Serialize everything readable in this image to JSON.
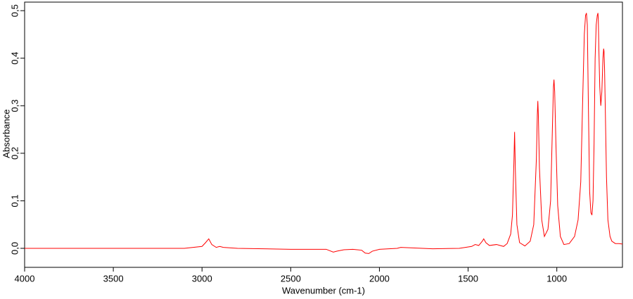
{
  "chart_data": {
    "type": "line",
    "x_label": "Wavenumber (cm-1)",
    "y_label": "Absorbance",
    "color": "#ff0000",
    "x": [
      4000,
      3500,
      3100,
      3000,
      2980,
      2962,
      2945,
      2920,
      2900,
      2880,
      2800,
      2500,
      2300,
      2260,
      2240,
      2200,
      2150,
      2100,
      2080,
      2060,
      2040,
      2000,
      1900,
      1880,
      1700,
      1550,
      1480,
      1460,
      1440,
      1420,
      1412,
      1400,
      1380,
      1340,
      1300,
      1280,
      1260,
      1250,
      1242,
      1238,
      1234,
      1225,
      1210,
      1180,
      1150,
      1130,
      1115,
      1110,
      1107,
      1104,
      1098,
      1085,
      1070,
      1050,
      1035,
      1025,
      1019,
      1016,
      1012,
      1005,
      995,
      980,
      960,
      930,
      900,
      880,
      865,
      855,
      845,
      838,
      833,
      828,
      822,
      815,
      808,
      802,
      796,
      790,
      784,
      778,
      772,
      768,
      766,
      763,
      758,
      752,
      746,
      740,
      736,
      734,
      731,
      727,
      720,
      712,
      700,
      690,
      670,
      650,
      630
    ],
    "values": [
      0.0,
      0.0,
      0.0,
      0.004,
      0.012,
      0.02,
      0.008,
      0.002,
      0.004,
      0.002,
      0.0,
      -0.002,
      -0.002,
      -0.008,
      -0.006,
      -0.003,
      -0.002,
      -0.004,
      -0.01,
      -0.011,
      -0.006,
      -0.002,
      0.0,
      0.002,
      -0.001,
      0.0,
      0.004,
      0.008,
      0.006,
      0.015,
      0.02,
      0.012,
      0.006,
      0.008,
      0.004,
      0.01,
      0.03,
      0.07,
      0.18,
      0.245,
      0.17,
      0.05,
      0.012,
      0.005,
      0.015,
      0.05,
      0.19,
      0.28,
      0.31,
      0.28,
      0.17,
      0.06,
      0.025,
      0.04,
      0.1,
      0.25,
      0.34,
      0.355,
      0.33,
      0.22,
      0.09,
      0.025,
      0.008,
      0.01,
      0.025,
      0.06,
      0.14,
      0.3,
      0.45,
      0.49,
      0.495,
      0.47,
      0.3,
      0.12,
      0.075,
      0.07,
      0.1,
      0.22,
      0.4,
      0.47,
      0.49,
      0.495,
      0.48,
      0.42,
      0.34,
      0.3,
      0.33,
      0.4,
      0.42,
      0.415,
      0.38,
      0.3,
      0.15,
      0.06,
      0.025,
      0.015,
      0.01,
      0.01,
      0.009
    ],
    "xlim": [
      4000,
      630
    ],
    "ylim": [
      -0.04,
      0.518
    ],
    "xticks": [
      4000,
      3500,
      3000,
      2500,
      2000,
      1500,
      1000
    ],
    "yticks": [
      {
        "value": 0,
        "label": "0,0"
      },
      {
        "value": 0.1,
        "label": "0,1"
      },
      {
        "value": 0.2,
        "label": "0,2"
      },
      {
        "value": 0.3,
        "label": "0,3"
      },
      {
        "value": 0.4,
        "label": "0,4"
      },
      {
        "value": 0.5,
        "label": "0,5"
      }
    ]
  }
}
